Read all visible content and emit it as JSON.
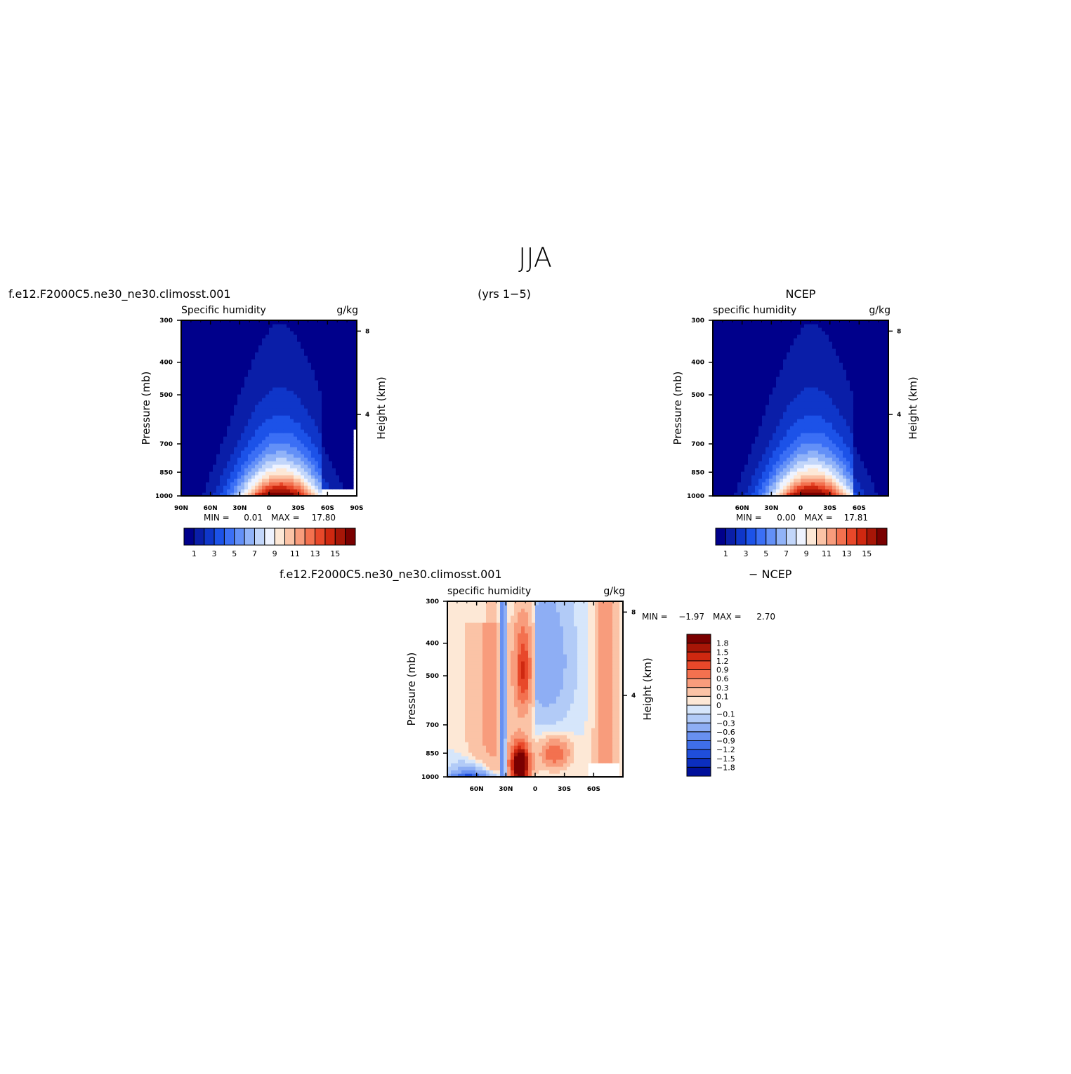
{
  "page": {
    "title": "JJA",
    "period": "(yrs 1−5)"
  },
  "chart_data": [
    {
      "type": "heatmap",
      "case_label": "f.e12.F2000C5.ne30_ne30.climosst.001",
      "variable": "Specific humidity",
      "units": "g/kg",
      "x_ticks": [
        "90N",
        "60N",
        "30N",
        "0",
        "30S",
        "60S",
        "90S"
      ],
      "y_ticks": [
        "300",
        "400",
        "500",
        "700",
        "850",
        "1000"
      ],
      "y_right_ticks": [
        "8",
        "4"
      ],
      "ylabel": "Pressure (mb)",
      "ylabel_right": "Height (km)",
      "min_label": "MIN =",
      "min": "0.01",
      "max_label": "MAX =",
      "max": "17.80",
      "colorbar_labels": [
        "1",
        "3",
        "5",
        "7",
        "9",
        "11",
        "13",
        "15"
      ],
      "colors": [
        "#00008b",
        "#0a1ea8",
        "#0f36c9",
        "#1c52e8",
        "#3b6ff5",
        "#6390f7",
        "#91b3f8",
        "#c2d6fa",
        "#eef3ff",
        "#fde8d6",
        "#fbc3a6",
        "#f89c7c",
        "#f3714f",
        "#e8482a",
        "#cf2810",
        "#a71607",
        "#7a0000"
      ],
      "peak_lat": -12,
      "peak_value": 17.8
    },
    {
      "type": "heatmap",
      "case_label": "NCEP",
      "variable": "specific humidity",
      "units": "g/kg",
      "x_ticks": [
        "60N",
        "30N",
        "0",
        "30S",
        "60S"
      ],
      "y_ticks": [
        "300",
        "400",
        "500",
        "700",
        "850",
        "1000"
      ],
      "y_right_ticks": [
        "8",
        "4"
      ],
      "ylabel": "Pressure (mb)",
      "ylabel_right": "Height (km)",
      "min_label": "MIN =",
      "min": "0.00",
      "max_label": "MAX =",
      "max": "17.81",
      "colorbar_labels": [
        "1",
        "3",
        "5",
        "7",
        "9",
        "11",
        "13",
        "15"
      ],
      "colors": [
        "#00008b",
        "#0a1ea8",
        "#0f36c9",
        "#1c52e8",
        "#3b6ff5",
        "#6390f7",
        "#91b3f8",
        "#c2d6fa",
        "#eef3ff",
        "#fde8d6",
        "#fbc3a6",
        "#f89c7c",
        "#f3714f",
        "#e8482a",
        "#cf2810",
        "#a71607",
        "#7a0000"
      ],
      "peak_lat": -12,
      "peak_value": 17.81
    },
    {
      "type": "heatmap",
      "case_label": "f.e12.F2000C5.ne30_ne30.climosst.001",
      "diff_label": "− NCEP",
      "variable": "specific humidity",
      "units": "g/kg",
      "x_ticks": [
        "60N",
        "30N",
        "0",
        "30S",
        "60S"
      ],
      "y_ticks": [
        "300",
        "400",
        "500",
        "700",
        "850",
        "1000"
      ],
      "y_right_ticks": [
        "8",
        "4"
      ],
      "ylabel": "Pressure (mb)",
      "ylabel_right": "Height (km)",
      "min_label": "MIN =",
      "min": "−1.97",
      "max_label": "MAX =",
      "max": "2.70",
      "colorbar_labels": [
        "1.8",
        "1.5",
        "1.2",
        "0.9",
        "0.6",
        "0.3",
        "0.1",
        "0",
        "−0.1",
        "−0.3",
        "−0.6",
        "−0.9",
        "−1.2",
        "−1.5",
        "−1.8"
      ],
      "colors": [
        "#7a0000",
        "#a71607",
        "#cf2810",
        "#e8482a",
        "#f3714f",
        "#f89c7c",
        "#fbc3a6",
        "#fde8d6",
        "#d6e6fb",
        "#b2cbf7",
        "#8eaef4",
        "#6890f0",
        "#3f6ee8",
        "#1f4edb",
        "#0b2ebf",
        "#00109a"
      ]
    }
  ]
}
